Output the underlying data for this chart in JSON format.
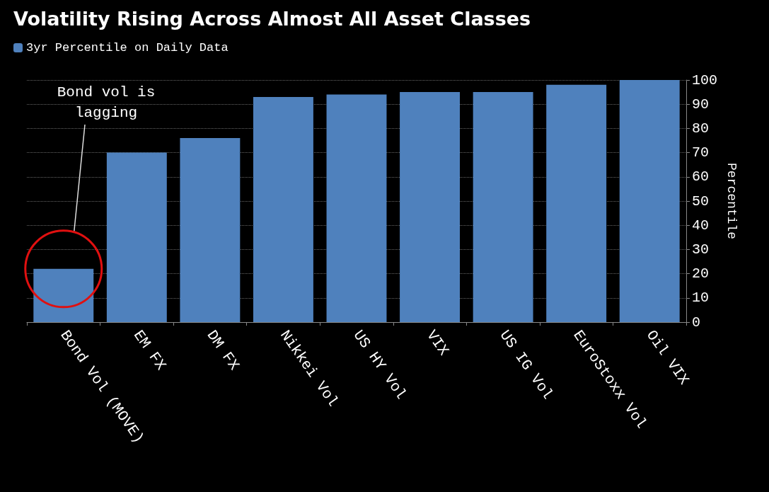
{
  "chart_data": {
    "type": "bar",
    "title": "Volatility Rising Across Almost All Asset Classes",
    "ylabel": "Percentile",
    "categories": [
      "Bond Vol (MOVE)",
      "EM FX",
      "DM FX",
      "Nikkei Vol",
      "US HY Vol",
      "VIX",
      "US IG Vol",
      "EuroStoxx Vol",
      "Oil VIX"
    ],
    "series": [
      {
        "name": "3yr Percentile on Daily Data",
        "color": "#4f81bd",
        "values": [
          22,
          70,
          76,
          93,
          94,
          95,
          95,
          98,
          100
        ]
      }
    ],
    "ylim": [
      0,
      100
    ],
    "yticks": [
      0,
      10,
      20,
      30,
      40,
      50,
      60,
      70,
      80,
      90,
      100
    ],
    "grid": "y",
    "legend": "top left",
    "annotations": [
      "Bond vol is\nlagging"
    ]
  }
}
